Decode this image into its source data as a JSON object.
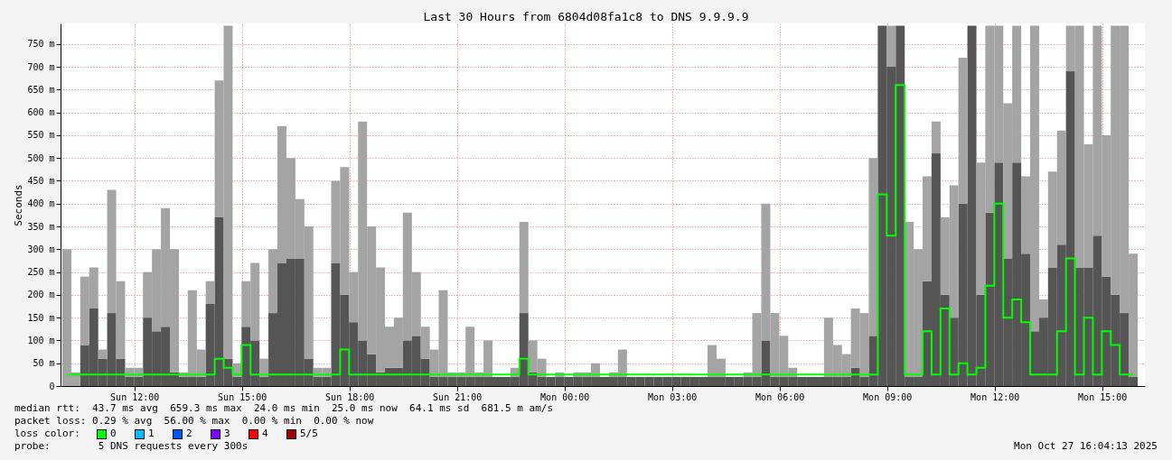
{
  "chart_data": {
    "type": "bar",
    "stacked": true,
    "title": "Last 30 Hours from 6804d08fa1c8 to DNS 9.9.9.9",
    "ylabel": "Seconds",
    "grid": true,
    "line_style": "solid",
    "x": [
      "2025-10-26T10:07",
      "2025-10-26T10:22",
      "2025-10-26T10:37",
      "2025-10-26T10:52",
      "2025-10-26T11:07",
      "2025-10-26T11:22",
      "2025-10-26T11:37",
      "2025-10-26T11:52",
      "2025-10-26T12:07",
      "2025-10-26T12:22",
      "2025-10-26T12:37",
      "2025-10-26T12:52",
      "2025-10-26T13:07",
      "2025-10-26T13:22",
      "2025-10-26T13:37",
      "2025-10-26T13:52",
      "2025-10-26T14:07",
      "2025-10-26T14:22",
      "2025-10-26T14:37",
      "2025-10-26T14:52",
      "2025-10-26T15:07",
      "2025-10-26T15:22",
      "2025-10-26T15:37",
      "2025-10-26T15:52",
      "2025-10-26T16:07",
      "2025-10-26T16:22",
      "2025-10-26T16:37",
      "2025-10-26T16:52",
      "2025-10-26T17:07",
      "2025-10-26T17:22",
      "2025-10-26T17:37",
      "2025-10-26T17:52",
      "2025-10-26T18:07",
      "2025-10-26T18:22",
      "2025-10-26T18:37",
      "2025-10-26T18:52",
      "2025-10-26T19:07",
      "2025-10-26T19:22",
      "2025-10-26T19:37",
      "2025-10-26T19:52",
      "2025-10-26T20:07",
      "2025-10-26T20:22",
      "2025-10-26T20:37",
      "2025-10-26T20:52",
      "2025-10-26T21:07",
      "2025-10-26T21:22",
      "2025-10-26T21:37",
      "2025-10-26T21:52",
      "2025-10-26T22:07",
      "2025-10-26T22:22",
      "2025-10-26T22:37",
      "2025-10-26T22:52",
      "2025-10-26T23:07",
      "2025-10-26T23:22",
      "2025-10-26T23:37",
      "2025-10-26T23:52",
      "2025-10-27T00:07",
      "2025-10-27T00:22",
      "2025-10-27T00:37",
      "2025-10-27T00:52",
      "2025-10-27T01:07",
      "2025-10-27T01:22",
      "2025-10-27T01:37",
      "2025-10-27T01:52",
      "2025-10-27T02:07",
      "2025-10-27T02:22",
      "2025-10-27T02:37",
      "2025-10-27T02:52",
      "2025-10-27T03:07",
      "2025-10-27T03:22",
      "2025-10-27T03:37",
      "2025-10-27T03:52",
      "2025-10-27T04:07",
      "2025-10-27T04:22",
      "2025-10-27T04:37",
      "2025-10-27T04:52",
      "2025-10-27T05:07",
      "2025-10-27T05:22",
      "2025-10-27T05:37",
      "2025-10-27T05:52",
      "2025-10-27T06:07",
      "2025-10-27T06:22",
      "2025-10-27T06:37",
      "2025-10-27T06:52",
      "2025-10-27T07:07",
      "2025-10-27T07:22",
      "2025-10-27T07:37",
      "2025-10-27T07:52",
      "2025-10-27T08:07",
      "2025-10-27T08:22",
      "2025-10-27T08:37",
      "2025-10-27T08:52",
      "2025-10-27T09:07",
      "2025-10-27T09:22",
      "2025-10-27T09:37",
      "2025-10-27T09:52",
      "2025-10-27T10:07",
      "2025-10-27T10:22",
      "2025-10-27T10:37",
      "2025-10-27T10:52",
      "2025-10-27T11:07",
      "2025-10-27T11:22",
      "2025-10-27T11:37",
      "2025-10-27T11:52",
      "2025-10-27T12:07",
      "2025-10-27T12:22",
      "2025-10-27T12:37",
      "2025-10-27T12:52",
      "2025-10-27T13:07",
      "2025-10-27T13:22",
      "2025-10-27T13:37",
      "2025-10-27T13:52",
      "2025-10-27T14:07",
      "2025-10-27T14:22",
      "2025-10-27T14:37",
      "2025-10-27T14:52",
      "2025-10-27T15:07",
      "2025-10-27T15:22",
      "2025-10-27T15:37",
      "2025-10-27T15:52"
    ],
    "xlim": [
      "2025-10-26T10:04",
      "2025-10-27T16:04"
    ],
    "xticks": [
      {
        "value": "2025-10-26T12:00",
        "label": "Sun 12:00"
      },
      {
        "value": "2025-10-26T15:00",
        "label": "Sun 15:00"
      },
      {
        "value": "2025-10-26T18:00",
        "label": "Sun 18:00"
      },
      {
        "value": "2025-10-26T21:00",
        "label": "Sun 21:00"
      },
      {
        "value": "2025-10-27T00:00",
        "label": "Mon 00:00"
      },
      {
        "value": "2025-10-27T03:00",
        "label": "Mon 03:00"
      },
      {
        "value": "2025-10-27T06:00",
        "label": "Mon 06:00"
      },
      {
        "value": "2025-10-27T09:00",
        "label": "Mon 09:00"
      },
      {
        "value": "2025-10-27T12:00",
        "label": "Mon 12:00"
      },
      {
        "value": "2025-10-27T15:00",
        "label": "Mon 15:00"
      }
    ],
    "ylim": [
      0,
      795
    ],
    "yticks": [
      0,
      {
        "value": 50,
        "label": "50 m"
      },
      {
        "value": 100,
        "label": "100 m"
      },
      {
        "value": 150,
        "label": "150 m"
      },
      {
        "value": 200,
        "label": "200 m"
      },
      {
        "value": 250,
        "label": "250 m"
      },
      {
        "value": 300,
        "label": "300 m"
      },
      {
        "value": 350,
        "label": "350 m"
      },
      {
        "value": 400,
        "label": "400 m"
      },
      {
        "value": 450,
        "label": "450 m"
      },
      {
        "value": 500,
        "label": "500 m"
      },
      {
        "value": 550,
        "label": "550 m"
      },
      {
        "value": 600,
        "label": "600 m"
      },
      {
        "value": 650,
        "label": "650 m"
      },
      {
        "value": 700,
        "label": "700 m"
      },
      {
        "value": 750,
        "label": "750 m"
      }
    ],
    "series": [
      {
        "color": "#555555",
        "values": [
          0,
          0,
          90,
          170,
          60,
          160,
          60,
          20,
          20,
          150,
          120,
          130,
          30,
          20,
          20,
          20,
          180,
          370,
          60,
          20,
          130,
          100,
          20,
          160,
          270,
          280,
          280,
          60,
          20,
          20,
          270,
          200,
          140,
          100,
          70,
          30,
          40,
          40,
          100,
          110,
          60,
          20,
          20,
          20,
          20,
          20,
          20,
          20,
          20,
          20,
          20,
          160,
          30,
          20,
          20,
          20,
          20,
          20,
          20,
          20,
          20,
          20,
          20,
          20,
          20,
          20,
          20,
          20,
          20,
          20,
          20,
          20,
          20,
          20,
          20,
          20,
          20,
          20,
          100,
          20,
          20,
          20,
          20,
          20,
          20,
          20,
          20,
          20,
          40,
          20,
          110,
          790,
          700,
          790,
          20,
          20,
          230,
          510,
          200,
          150,
          400,
          790,
          200,
          380,
          490,
          280,
          490,
          290,
          120,
          150,
          260,
          310,
          690,
          260,
          260,
          330,
          240,
          200,
          160,
          20
        ]
      },
      {
        "color": "#a4a4a4",
        "values": [
          300,
          30,
          150,
          90,
          20,
          270,
          170,
          20,
          20,
          100,
          180,
          260,
          270,
          10,
          190,
          60,
          50,
          300,
          730,
          30,
          100,
          170,
          40,
          140,
          300,
          220,
          130,
          290,
          20,
          20,
          180,
          280,
          110,
          480,
          280,
          230,
          90,
          110,
          280,
          140,
          70,
          60,
          190,
          10,
          10,
          110,
          10,
          80,
          0,
          0,
          20,
          200,
          70,
          40,
          0,
          10,
          0,
          10,
          10,
          30,
          0,
          10,
          60,
          0,
          0,
          0,
          0,
          0,
          0,
          0,
          0,
          0,
          70,
          40,
          0,
          0,
          10,
          140,
          300,
          140,
          90,
          20,
          0,
          0,
          0,
          130,
          70,
          50,
          130,
          140,
          390,
          0,
          90,
          0,
          340,
          280,
          230,
          70,
          170,
          290,
          320,
          0,
          290,
          410,
          300,
          340,
          300,
          170,
          670,
          40,
          210,
          250,
          100,
          530,
          270,
          460,
          310,
          590,
          630,
          270
        ]
      },
      {
        "type": "step",
        "color": "#00ff00",
        "values": [
          25,
          25,
          25,
          25,
          25,
          25,
          25,
          25,
          25,
          25,
          25,
          25,
          25,
          25,
          25,
          25,
          25,
          60,
          40,
          25,
          90,
          25,
          25,
          25,
          25,
          25,
          25,
          25,
          25,
          25,
          25,
          80,
          25,
          25,
          25,
          25,
          25,
          25,
          25,
          25,
          25,
          25,
          25,
          25,
          25,
          25,
          25,
          25,
          25,
          25,
          25,
          60,
          25,
          25,
          25,
          25,
          25,
          25,
          25,
          25,
          25,
          25,
          25,
          25,
          25,
          25,
          25,
          25,
          25,
          25,
          25,
          25,
          25,
          25,
          25,
          25,
          25,
          25,
          25,
          25,
          25,
          25,
          25,
          25,
          25,
          25,
          25,
          25,
          25,
          25,
          25,
          420,
          330,
          660,
          25,
          25,
          120,
          25,
          170,
          25,
          50,
          25,
          40,
          220,
          400,
          150,
          190,
          140,
          25,
          25,
          25,
          120,
          280,
          25,
          150,
          25,
          120,
          90,
          25,
          25
        ]
      }
    ],
    "annotations": [
      "median rtt:  43.7 ms avg  659.3 ms max  24.0 ms min  25.0 ms now  64.1 ms sd  681.5 m am/s",
      "packet loss: 0.29 % avg  56.00 % max  0.00 % min  0.00 % now",
      "loss color:",
      "0",
      "1",
      "2",
      "3",
      "4",
      "5/5",
      "probe:        5 DNS requests every 300s",
      "Mon Oct 27 16:04:13 2025"
    ]
  }
}
